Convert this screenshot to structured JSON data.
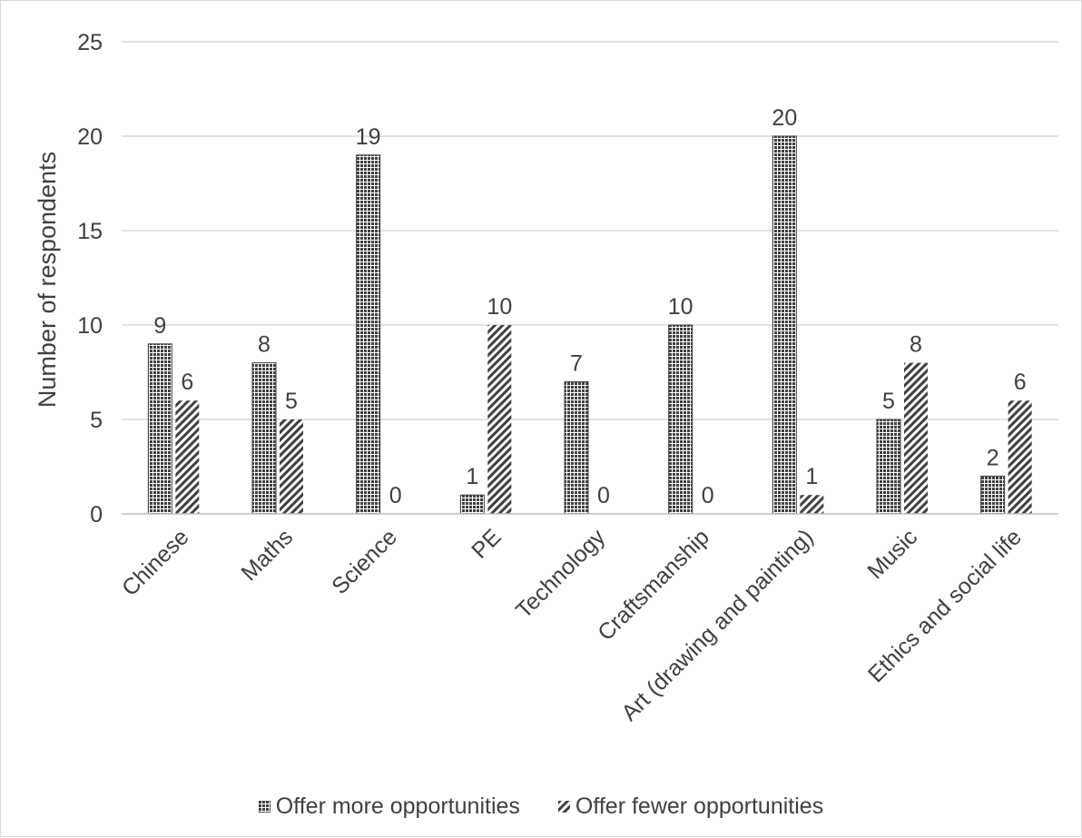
{
  "chart_data": {
    "type": "bar",
    "title": "",
    "xlabel": "",
    "ylabel": "Number of respondents",
    "ylim": [
      0,
      25
    ],
    "yticks": [
      0,
      5,
      10,
      15,
      20,
      25
    ],
    "grid": true,
    "legend_position": "bottom",
    "categories": [
      "Chinese",
      "Maths",
      "Science",
      "PE",
      "Technology",
      "Craftsmanship",
      "Art (drawing and painting)",
      "Music",
      "Ethics and social life"
    ],
    "series": [
      {
        "name": "Offer more opportunities",
        "values": [
          9,
          8,
          19,
          1,
          7,
          10,
          20,
          5,
          2
        ],
        "pattern": "dense-dots",
        "color": "#3f3f3f"
      },
      {
        "name": "Offer fewer opportunities",
        "values": [
          6,
          5,
          0,
          10,
          0,
          0,
          1,
          8,
          6
        ],
        "pattern": "diagonal-hatch",
        "color": "#3f3f3f"
      }
    ],
    "data_labels": true
  },
  "legend": {
    "items": [
      {
        "label": "Offer more opportunities",
        "pattern": "dense-dots"
      },
      {
        "label": "Offer fewer opportunities",
        "pattern": "diagonal-hatch"
      }
    ]
  },
  "colors": {
    "axis_text": "#404040",
    "grid": "#d9d9d9",
    "bar": "#3f3f3f",
    "bar_light": "#ffffff"
  }
}
